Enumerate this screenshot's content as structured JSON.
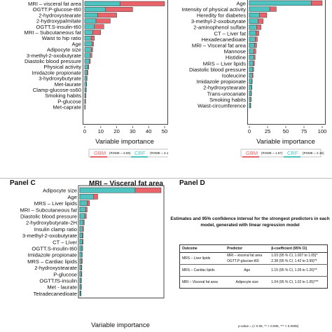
{
  "colors": {
    "gbm": "#e8646a",
    "crf": "#4fc3c0",
    "frame": "#444444"
  },
  "panel_c": {
    "label": "Panel C"
  },
  "panel_d": {
    "label": "Panel D",
    "title": "Estimates and 95% confidence interval for the strongest predictors in each model, generated with linear regression model",
    "table": {
      "headers": [
        "Outcome",
        "Predictor",
        "β-coefficient (95% CI)"
      ],
      "groups": [
        {
          "outcome": "MRS – Liver lipids",
          "rows": [
            {
              "predictor": "MRI – visceral fat area",
              "beta": "1.03 (95 % CI, 1.007 to 1.05)*"
            },
            {
              "predictor": "OGTT.P-glucose-t60",
              "beta": "2.38 (95 % CI, 1.42 to 3.99)**"
            }
          ]
        },
        {
          "outcome": "MRS – Cardiac lipids",
          "rows": [
            {
              "predictor": "Age",
              "beta": "1.15 (95 % CI, 1.05 to 1.26)**"
            }
          ]
        },
        {
          "outcome": "MRI – Visceral fat area",
          "rows": [
            {
              "predictor": "Adipocyte size",
              "beta": "1.04 (95 % CI, 1.02 to 1.05)***"
            }
          ]
        }
      ],
      "footnote": "p-value = (< 0.05, ** < 0.005, *** < 0.0005)"
    }
  },
  "chart_data": [
    {
      "type": "bar",
      "panel": "top-left",
      "title": "",
      "xlabel": "Variable importance",
      "xlim": [
        0,
        50
      ],
      "ticks": [
        "0",
        "10",
        "20",
        "30",
        "40",
        "50"
      ],
      "categories": [
        "MRI – visceral fat area",
        "OGTT.P-glucose-t60",
        "2-hydroxystearate",
        "2-hydroxypalmitate",
        "OGTT.S-insulin-t60",
        "MRI – Subcutaneous fat",
        "Waist to hip ratio",
        "Age",
        "Adipocyte size",
        "3-methyl-2-oxobutyrate",
        "Diastolic blood pressure",
        "Physical activity",
        "Imidazole propionate",
        "3-hydroxybutyrate",
        "Met-laurate",
        "Clamp-glucose-ss60",
        "Smoking habits",
        "P-glucose",
        "Met-caprate"
      ],
      "series": [
        {
          "name": "GBM",
          "values": [
            50,
            30,
            20,
            16,
            12,
            10,
            6,
            5.5,
            5,
            4.5,
            3.5,
            2.5,
            2,
            1.5,
            1.2,
            1,
            0.7,
            0.5,
            0.3
          ]
        },
        {
          "name": "CRF",
          "values": [
            22,
            13,
            8,
            7,
            6,
            5,
            4,
            4.5,
            4,
            3.5,
            3,
            2,
            1.5,
            1.2,
            1,
            0.8,
            0.6,
            0.4,
            0.2
          ]
        }
      ],
      "legend": {
        "position": "bottom",
        "gbm_rmse": "(RSME = 3.59)",
        "crf_rmse": "(RSME = 3.15)"
      }
    },
    {
      "type": "bar",
      "panel": "top-right",
      "title": "",
      "xlabel": "Variable importance",
      "xlim": [
        0,
        100
      ],
      "ticks": [
        "0",
        "25",
        "50",
        "75",
        "100"
      ],
      "categories": [
        "Age",
        "Intensity of physical activity",
        "Heredity for diabetes",
        "3-methyl-2-oxobutyrate",
        "2-aminophenol sulfate",
        "CT – Liver fat",
        "Hexadecanedioate",
        "MRI – Visceral fat area",
        "Mannose",
        "Histidine",
        "MRS – Liver lipids",
        "Diastolic blood pressure",
        "Isoleucine",
        "Imidazole propionate",
        "2-hydroxystearate",
        "Trans-urocanate",
        "Smoking habits",
        "Waist-circumference"
      ],
      "series": [
        {
          "name": "GBM",
          "values": [
            100,
            37,
            24,
            19,
            16,
            13,
            11,
            10,
            9,
            8,
            7,
            6,
            5,
            4,
            3.5,
            3,
            2.5,
            2
          ]
        },
        {
          "name": "CRF",
          "values": [
            85,
            28,
            14,
            12,
            10,
            9,
            8,
            7,
            6,
            6,
            5,
            4.5,
            4,
            3,
            3,
            2.5,
            2,
            1.5
          ]
        }
      ],
      "legend": {
        "position": "bottom",
        "gbm_rmse": "(RSME = 1.67)",
        "crf_rmse": "(RSME = 2.16)"
      }
    },
    {
      "type": "bar",
      "panel": "bottom-left",
      "title": "MRI – Visceral fat area",
      "xlabel": "Variable importance",
      "xlim": [
        0,
        100
      ],
      "ticks": [],
      "categories": [
        "Adipocyte size",
        "Age",
        "MRS – Liver lipids",
        "MRI – Subcutaneous fat",
        "Diastolic blood pressure",
        "2-hydroxybutyrate-2H",
        "Insulin clamp ratio",
        "3-methyl-2-oxobutyrate",
        "CT – Liver",
        "OGTT.S-insulin-t60",
        "Imidazole propionate",
        "MRS – Cardiac lipids",
        "2-hydroxystearate",
        "P-glucose",
        "OGTT.fS-insulin",
        "Met - laurate",
        "Tetradecanedioate"
      ],
      "series": [
        {
          "name": "GBM",
          "values": [
            100,
            22,
            12,
            9,
            8,
            5.5,
            4.5,
            4,
            4,
            3.5,
            3,
            3,
            2.5,
            2.5,
            2,
            2,
            1.5
          ]
        },
        {
          "name": "CRF",
          "values": [
            68,
            17,
            9,
            7,
            6,
            4,
            3.5,
            3,
            3,
            2.5,
            2.5,
            2,
            2,
            2,
            1.5,
            1.5,
            1
          ]
        }
      ]
    }
  ]
}
